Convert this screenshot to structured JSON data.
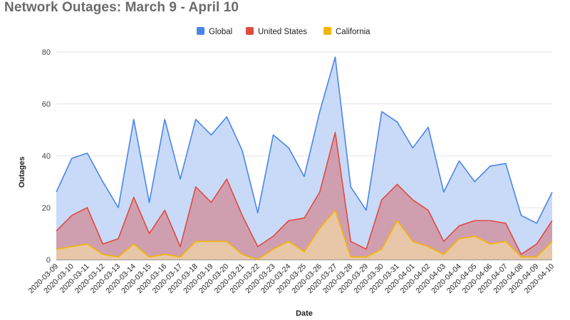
{
  "chart_data": {
    "type": "area",
    "title": "Network Outages: March 9 - April 10",
    "xlabel": "Date",
    "ylabel": "Outages",
    "ylim": [
      0,
      80
    ],
    "yticks": [
      0,
      20,
      40,
      60,
      80
    ],
    "grid": true,
    "legend": "top",
    "x": [
      "2020-03-09",
      "2020-03-10",
      "2020-03-11",
      "2020-03-12",
      "2020-03-13",
      "2020-03-14",
      "2020-03-15",
      "2020-03-16",
      "2020-03-17",
      "2020-03-18",
      "2020-03-19",
      "2020-03-20",
      "2020-03-21",
      "2020-03-22",
      "2020-03-23",
      "2020-03-24",
      "2020-03-25",
      "2020-03-26",
      "2020-03-27",
      "2020-03-28",
      "2020-03-29",
      "2020-03-30",
      "2020-03-31",
      "2020-04-01",
      "2020-04-02",
      "2020-04-03",
      "2020-04-04",
      "2020-04-05",
      "2020-04-06",
      "2020-04-07",
      "2020-04-08",
      "2020-04-09",
      "2020-04-10"
    ],
    "series": [
      {
        "name": "Global",
        "color": "#4a86e8",
        "fill": "#c9daf8",
        "values": [
          26,
          39,
          41,
          30,
          20,
          54,
          22,
          54,
          31,
          54,
          48,
          55,
          42,
          18,
          48,
          43,
          32,
          57,
          78,
          28,
          19,
          57,
          53,
          43,
          51,
          26,
          38,
          30,
          36,
          37,
          17,
          14,
          26
        ]
      },
      {
        "name": "United States",
        "color": "#e04a3f",
        "fill": "#cf9fb0",
        "values": [
          11,
          17,
          20,
          6,
          8,
          24,
          10,
          19,
          5,
          28,
          22,
          31,
          17,
          5,
          9,
          15,
          16,
          26,
          49,
          7,
          4,
          23,
          29,
          23,
          19,
          7,
          13,
          15,
          15,
          14,
          2,
          6,
          15
        ]
      },
      {
        "name": "California",
        "color": "#f4b400",
        "fill": "#e7c7a7",
        "values": [
          4,
          5,
          6,
          2,
          1,
          6,
          1,
          2,
          1,
          7,
          7,
          7,
          2,
          0,
          4,
          7,
          3,
          12,
          19,
          1,
          1,
          4,
          15,
          7,
          5,
          2,
          8,
          9,
          6,
          7,
          1,
          1,
          7
        ]
      }
    ]
  }
}
